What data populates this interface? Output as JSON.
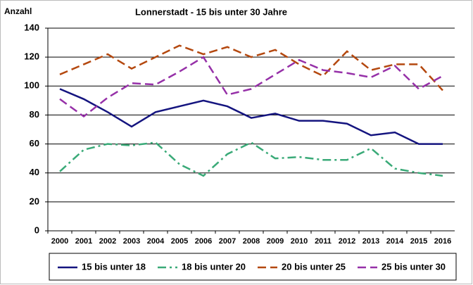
{
  "chart_data": {
    "type": "line",
    "title": "Lonnerstadt - 15 bis unter 30 Jahre",
    "y_label": "Anzahl",
    "categories": [
      "2000",
      "2001",
      "2002",
      "2003",
      "2004",
      "2005",
      "2006",
      "2007",
      "2008",
      "2009",
      "2010",
      "2011",
      "2012",
      "2013",
      "2014",
      "2015",
      "2016"
    ],
    "series": [
      {
        "name": "15 bis unter 18",
        "color": "#14147f",
        "linestyle": "solid",
        "values": [
          98,
          91,
          82,
          72,
          82,
          86,
          90,
          86,
          78,
          81,
          76,
          76,
          74,
          66,
          68,
          60,
          60
        ]
      },
      {
        "name": "18 bis unter 20",
        "color": "#3aaa78",
        "linestyle": "dashdot",
        "values": [
          41,
          56,
          60,
          59,
          61,
          46,
          38,
          53,
          61,
          50,
          51,
          49,
          49,
          57,
          43,
          40,
          38
        ]
      },
      {
        "name": "20 bis unter 25",
        "color": "#b4480f",
        "linestyle": "dashed",
        "values": [
          108,
          115,
          122,
          112,
          120,
          128,
          122,
          127,
          120,
          125,
          115,
          107,
          124,
          111,
          115,
          115,
          97
        ]
      },
      {
        "name": "25 bis unter 30",
        "color": "#9630a8",
        "linestyle": "dashed",
        "values": [
          91,
          79,
          92,
          102,
          101,
          110,
          120,
          94,
          98,
          108,
          118,
          111,
          109,
          106,
          114,
          98,
          107
        ]
      }
    ],
    "ylim": [
      0,
      140
    ],
    "yticks": [
      0,
      20,
      40,
      60,
      80,
      100,
      120,
      140
    ],
    "grid": true,
    "legend": "bottom"
  }
}
